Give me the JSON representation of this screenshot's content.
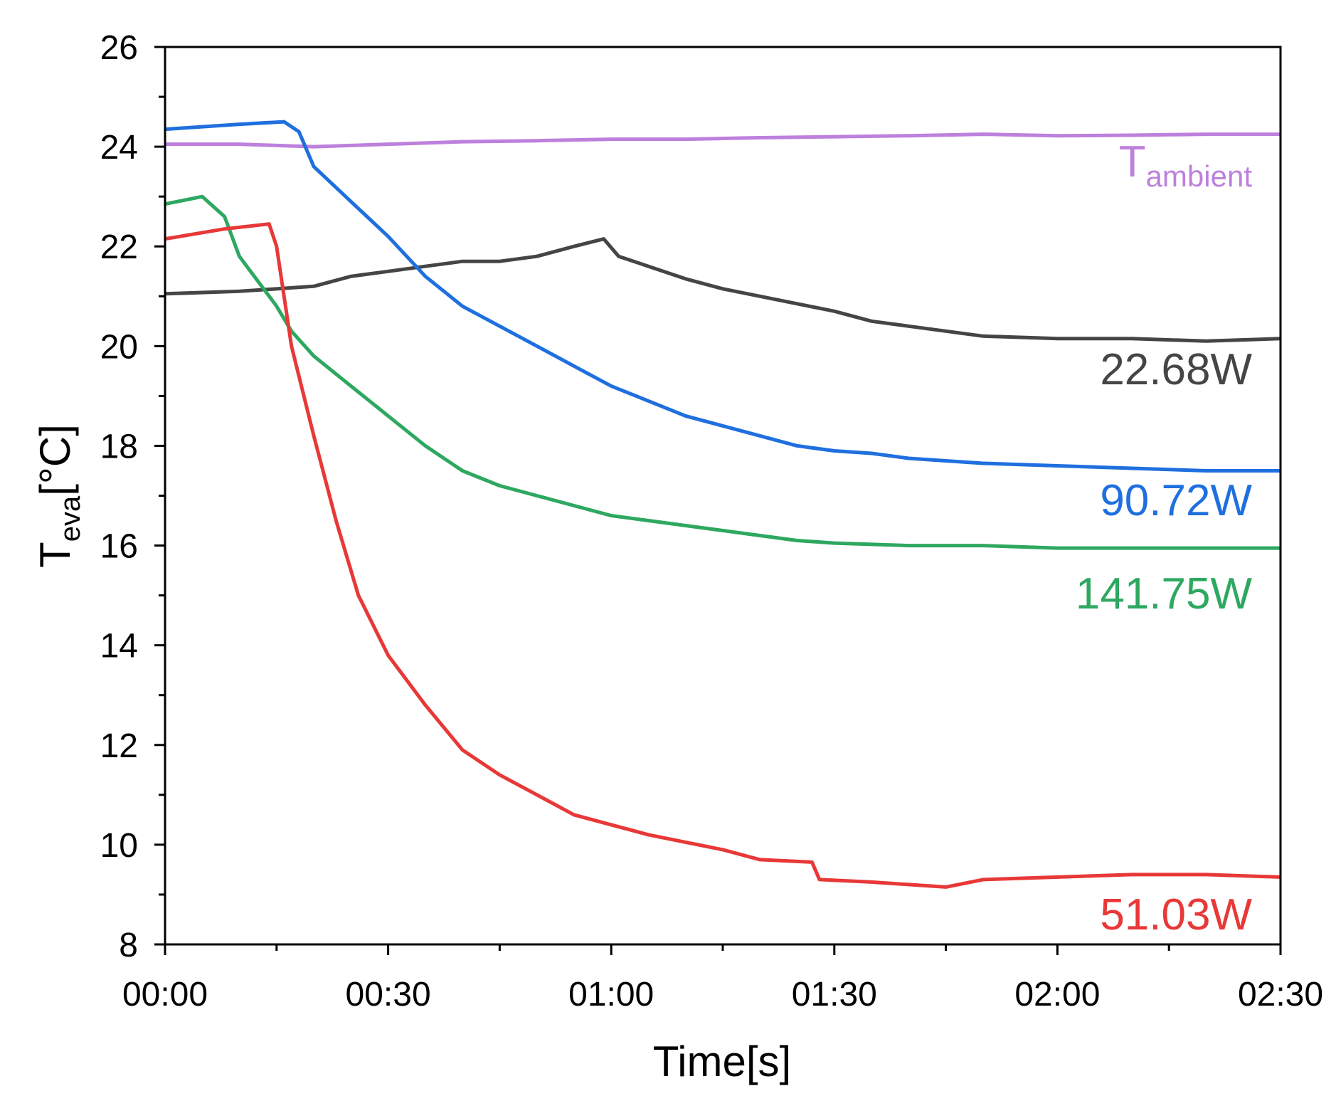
{
  "chart_data": {
    "type": "line",
    "xlabel": "Time[s]",
    "ylabel": "T",
    "ylabel_sub": "eva",
    "ylabel_rest": "[°C]",
    "xlim": [
      0,
      150
    ],
    "xticks": [
      {
        "value": 0,
        "label": "00:00"
      },
      {
        "value": 30,
        "label": "00:30"
      },
      {
        "value": 60,
        "label": "01:00"
      },
      {
        "value": 90,
        "label": "01:30"
      },
      {
        "value": 120,
        "label": "02:00"
      },
      {
        "value": 150,
        "label": "02:30"
      }
    ],
    "xminorticks": [
      15,
      45,
      75,
      105,
      135
    ],
    "ylim": [
      8,
      26
    ],
    "yticks": [
      8,
      10,
      12,
      14,
      16,
      18,
      20,
      22,
      24,
      26
    ],
    "yminorticks": [
      9,
      11,
      13,
      15,
      17,
      19,
      21,
      23,
      25
    ],
    "series": [
      {
        "name": "T",
        "name_sub": "ambient",
        "color": "#bd80dd",
        "x": [
          0,
          10,
          20,
          30,
          40,
          50,
          60,
          70,
          80,
          90,
          100,
          110,
          120,
          130,
          140,
          150
        ],
        "values": [
          24.05,
          24.05,
          24.0,
          24.05,
          24.1,
          24.12,
          24.15,
          24.15,
          24.18,
          24.2,
          24.22,
          24.25,
          24.22,
          24.23,
          24.25,
          24.25
        ]
      },
      {
        "name": "22.68W",
        "color": "#454545",
        "x": [
          0,
          10,
          20,
          25,
          30,
          35,
          40,
          45,
          50,
          55,
          59,
          61,
          65,
          70,
          75,
          80,
          85,
          90,
          95,
          100,
          105,
          110,
          120,
          130,
          140,
          150
        ],
        "values": [
          21.05,
          21.1,
          21.2,
          21.4,
          21.5,
          21.6,
          21.7,
          21.7,
          21.8,
          22.0,
          22.15,
          21.8,
          21.6,
          21.35,
          21.15,
          21.0,
          20.85,
          20.7,
          20.5,
          20.4,
          20.3,
          20.2,
          20.15,
          20.15,
          20.1,
          20.15
        ]
      },
      {
        "name": "90.72W",
        "color": "#1f6fdf",
        "x": [
          0,
          10,
          16,
          18,
          20,
          25,
          30,
          35,
          40,
          45,
          50,
          55,
          60,
          65,
          70,
          75,
          80,
          85,
          90,
          95,
          100,
          105,
          110,
          120,
          130,
          140,
          150
        ],
        "values": [
          24.35,
          24.45,
          24.5,
          24.3,
          23.6,
          22.9,
          22.2,
          21.4,
          20.8,
          20.4,
          20.0,
          19.6,
          19.2,
          18.9,
          18.6,
          18.4,
          18.2,
          18.0,
          17.9,
          17.85,
          17.75,
          17.7,
          17.65,
          17.6,
          17.55,
          17.5,
          17.5
        ]
      },
      {
        "name": "141.75W",
        "color": "#2ea860",
        "x": [
          0,
          5,
          8,
          10,
          13,
          15,
          17,
          20,
          25,
          30,
          35,
          40,
          45,
          50,
          55,
          60,
          65,
          70,
          75,
          80,
          85,
          90,
          100,
          110,
          120,
          130,
          140,
          150
        ],
        "values": [
          22.85,
          23.0,
          22.6,
          21.8,
          21.2,
          20.8,
          20.3,
          19.8,
          19.2,
          18.6,
          18.0,
          17.5,
          17.2,
          17.0,
          16.8,
          16.6,
          16.5,
          16.4,
          16.3,
          16.2,
          16.1,
          16.05,
          16.0,
          16.0,
          15.95,
          15.95,
          15.95,
          15.95
        ]
      },
      {
        "name": "51.03W",
        "color": "#e83838",
        "x": [
          0,
          8,
          14,
          15,
          17,
          20,
          23,
          26,
          30,
          35,
          40,
          45,
          50,
          55,
          60,
          65,
          70,
          75,
          80,
          87,
          88,
          95,
          100,
          105,
          110,
          120,
          130,
          140,
          150
        ],
        "values": [
          22.15,
          22.35,
          22.45,
          22.0,
          20.0,
          18.2,
          16.5,
          15.0,
          13.8,
          12.8,
          11.9,
          11.4,
          11.0,
          10.6,
          10.4,
          10.2,
          10.05,
          9.9,
          9.7,
          9.65,
          9.3,
          9.25,
          9.2,
          9.15,
          9.3,
          9.35,
          9.4,
          9.4,
          9.35
        ]
      }
    ]
  }
}
